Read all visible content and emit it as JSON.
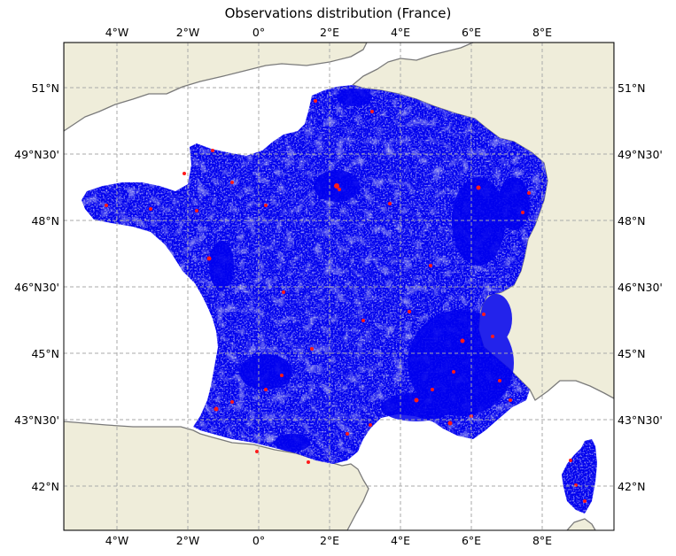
{
  "title": "Observations distribution (France)",
  "x_tick_labels": [
    "4°W",
    "2°W",
    "0°",
    "2°E",
    "4°E",
    "6°E",
    "8°E"
  ],
  "y_tick_labels": [
    "51°N",
    "49°N30'",
    "48°N",
    "46°N30'",
    "45°N",
    "43°N30'",
    "42°N"
  ],
  "extent": {
    "lon": [
      -5.5,
      10.0
    ],
    "lat": [
      41.33,
      51.67
    ]
  },
  "colors": {
    "land": "#efedda",
    "sea": "#ffffff",
    "coastline": "#7a7a7a",
    "gridline": "#aaaaaa",
    "observations": "#0000ee",
    "observation_highlights": "#ff1a1a"
  }
}
